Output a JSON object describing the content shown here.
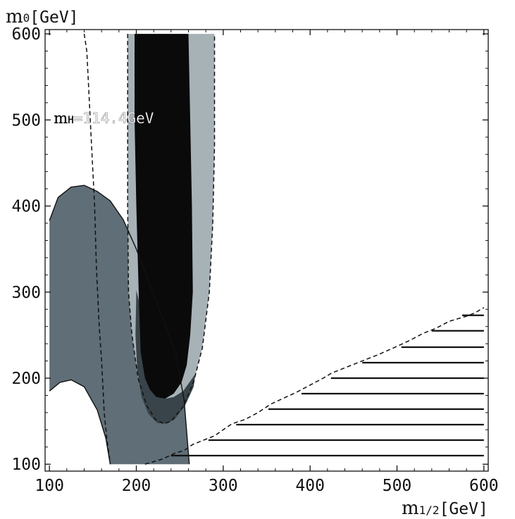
{
  "chart_data": {
    "type": "area",
    "title": "",
    "ylabel": {
      "main": "m",
      "sub": "0",
      "unit": "[GeV]"
    },
    "xlabel": {
      "main": "m",
      "sub": "1/2",
      "unit": "[GeV]"
    },
    "xlim": [
      95,
      605
    ],
    "ylim": [
      92,
      605
    ],
    "x_ticks": [
      100,
      200,
      300,
      400,
      500,
      600
    ],
    "y_ticks": [
      100,
      200,
      300,
      400,
      500,
      600
    ],
    "grid": false,
    "colors": {
      "region_blue_gray": "#5f6e77",
      "region_light_band": "#a7b2b7",
      "region_dark_band": "#0a0a0a",
      "region_overlap": "#39444a",
      "line": "#111111"
    },
    "regions": [
      {
        "fill": "region_blue_gray",
        "points": [
          [
            100,
            383
          ],
          [
            110,
            410
          ],
          [
            125,
            422
          ],
          [
            140,
            424
          ],
          [
            155,
            417
          ],
          [
            170,
            406
          ],
          [
            185,
            384
          ],
          [
            200,
            350
          ],
          [
            215,
            310
          ],
          [
            230,
            270
          ],
          [
            245,
            230
          ],
          [
            255,
            175
          ],
          [
            261,
            100
          ],
          [
            170,
            100
          ],
          [
            165,
            130
          ],
          [
            155,
            163
          ],
          [
            140,
            190
          ],
          [
            125,
            198
          ],
          [
            112,
            195
          ],
          [
            100,
            185
          ]
        ]
      },
      {
        "fill": "region_light_band",
        "points": [
          [
            190,
            600
          ],
          [
            290,
            600
          ],
          [
            290,
            470
          ],
          [
            288,
            380
          ],
          [
            284,
            300
          ],
          [
            276,
            235
          ],
          [
            266,
            196
          ],
          [
            254,
            167
          ],
          [
            240,
            150
          ],
          [
            232,
            147
          ],
          [
            222,
            152
          ],
          [
            212,
            168
          ],
          [
            202,
            200
          ],
          [
            195,
            250
          ],
          [
            191,
            300
          ],
          [
            190,
            400
          ]
        ]
      },
      {
        "fill": "region_overlap",
        "points": [
          [
            200,
            302
          ],
          [
            199,
            250
          ],
          [
            201,
            210
          ],
          [
            206,
            178
          ],
          [
            214,
            158
          ],
          [
            224,
            148
          ],
          [
            234,
            147
          ],
          [
            244,
            152
          ],
          [
            256,
            168
          ],
          [
            266,
            190
          ],
          [
            268,
            205
          ],
          [
            254,
            185
          ],
          [
            243,
            178
          ],
          [
            233,
            176
          ],
          [
            223,
            178
          ],
          [
            216,
            186
          ],
          [
            206,
            230
          ],
          [
            203,
            290
          ]
        ]
      },
      {
        "fill": "region_dark_band",
        "points": [
          [
            198,
            600
          ],
          [
            260,
            600
          ],
          [
            262,
            500
          ],
          [
            264,
            400
          ],
          [
            265,
            300
          ],
          [
            262,
            250
          ],
          [
            258,
            215
          ],
          [
            252,
            195
          ],
          [
            243,
            182
          ],
          [
            233,
            176
          ],
          [
            223,
            178
          ],
          [
            216,
            186
          ],
          [
            210,
            200
          ],
          [
            205,
            230
          ],
          [
            203,
            290
          ],
          [
            200,
            400
          ],
          [
            198,
            500
          ]
        ]
      }
    ],
    "dashed_lines": [
      {
        "points": [
          [
            140,
            600
          ],
          [
            143,
            580
          ],
          [
            145,
            540
          ],
          [
            147,
            500
          ],
          [
            149,
            460
          ],
          [
            151,
            420
          ],
          [
            152,
            400
          ],
          [
            154,
            330
          ],
          [
            157,
            265
          ],
          [
            160,
            220
          ],
          [
            163,
            160
          ],
          [
            166,
            130
          ],
          [
            170,
            100
          ]
        ]
      },
      {
        "points": [
          [
            190,
            600
          ],
          [
            190,
            400
          ],
          [
            191,
            300
          ],
          [
            195,
            250
          ],
          [
            202,
            200
          ],
          [
            212,
            168
          ],
          [
            222,
            152
          ],
          [
            232,
            147
          ],
          [
            240,
            150
          ],
          [
            254,
            167
          ],
          [
            266,
            196
          ],
          [
            276,
            235
          ],
          [
            284,
            300
          ],
          [
            288,
            380
          ],
          [
            290,
            470
          ],
          [
            290,
            600
          ]
        ]
      },
      {
        "points": [
          [
            210,
            100
          ],
          [
            230,
            106
          ],
          [
            245,
            113
          ],
          [
            255,
            116
          ],
          [
            265,
            123
          ],
          [
            275,
            127
          ],
          [
            290,
            133
          ],
          [
            300,
            140
          ],
          [
            310,
            147
          ],
          [
            325,
            152
          ],
          [
            340,
            160
          ],
          [
            355,
            170
          ],
          [
            370,
            177
          ],
          [
            385,
            184
          ],
          [
            400,
            192
          ],
          [
            415,
            200
          ],
          [
            425,
            206
          ],
          [
            440,
            212
          ],
          [
            455,
            218
          ],
          [
            470,
            224
          ],
          [
            480,
            228
          ],
          [
            500,
            237
          ],
          [
            515,
            244
          ],
          [
            530,
            252
          ],
          [
            545,
            258
          ],
          [
            560,
            266
          ],
          [
            580,
            272
          ],
          [
            590,
            276
          ],
          [
            600,
            282
          ]
        ]
      }
    ],
    "solid_outlines": [
      {
        "points": [
          [
            100,
            383
          ],
          [
            110,
            410
          ],
          [
            125,
            422
          ],
          [
            140,
            424
          ],
          [
            155,
            417
          ],
          [
            170,
            406
          ],
          [
            185,
            384
          ],
          [
            200,
            350
          ],
          [
            215,
            310
          ],
          [
            230,
            270
          ],
          [
            245,
            230
          ],
          [
            255,
            175
          ],
          [
            261,
            100
          ]
        ]
      },
      {
        "points": [
          [
            100,
            185
          ],
          [
            112,
            195
          ],
          [
            125,
            198
          ],
          [
            140,
            190
          ],
          [
            155,
            163
          ],
          [
            165,
            130
          ],
          [
            170,
            100
          ]
        ]
      }
    ],
    "hatch_lines": [
      {
        "y": 110,
        "x_from": 240
      },
      {
        "y": 128,
        "x_from": 283
      },
      {
        "y": 146,
        "x_from": 315
      },
      {
        "y": 164,
        "x_from": 352
      },
      {
        "y": 182,
        "x_from": 390
      },
      {
        "y": 200,
        "x_from": 424
      },
      {
        "y": 218,
        "x_from": 460
      },
      {
        "y": 236,
        "x_from": 505
      },
      {
        "y": 255,
        "x_from": 540
      },
      {
        "y": 273,
        "x_from": 575
      }
    ],
    "annotations": [
      {
        "text_main": "m",
        "text_sub": "H",
        "text_rest": "=114.4GeV",
        "x": 152,
        "y": 496
      }
    ]
  }
}
